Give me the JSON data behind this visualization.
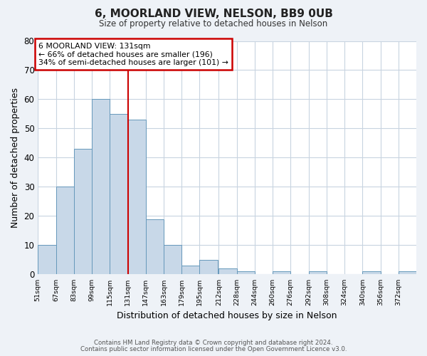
{
  "title": "6, MOORLAND VIEW, NELSON, BB9 0UB",
  "subtitle": "Size of property relative to detached houses in Nelson",
  "xlabel": "Distribution of detached houses by size in Nelson",
  "ylabel": "Number of detached properties",
  "bin_edges": [
    51,
    67,
    83,
    99,
    115,
    131,
    147,
    163,
    179,
    195,
    212,
    228,
    244,
    260,
    276,
    292,
    308,
    324,
    340,
    356,
    372
  ],
  "bar_heights": [
    10,
    30,
    43,
    60,
    55,
    53,
    19,
    10,
    3,
    5,
    2,
    1,
    0,
    1,
    0,
    1,
    0,
    0,
    1,
    0,
    1
  ],
  "bar_color": "#c8d8e8",
  "bar_edge_color": "#6699bb",
  "vline_x": 131,
  "vline_color": "#cc0000",
  "annotation_title": "6 MOORLAND VIEW: 131sqm",
  "annotation_line2": "← 66% of detached houses are smaller (196)",
  "annotation_line3": "34% of semi-detached houses are larger (101) →",
  "annotation_box_color": "#cc0000",
  "ylim": [
    0,
    80
  ],
  "yticks": [
    0,
    10,
    20,
    30,
    40,
    50,
    60,
    70,
    80
  ],
  "tick_labels": [
    "51sqm",
    "67sqm",
    "83sqm",
    "99sqm",
    "115sqm",
    "131sqm",
    "147sqm",
    "163sqm",
    "179sqm",
    "195sqm",
    "212sqm",
    "228sqm",
    "244sqm",
    "260sqm",
    "276sqm",
    "292sqm",
    "308sqm",
    "324sqm",
    "340sqm",
    "356sqm",
    "372sqm"
  ],
  "footer_line1": "Contains HM Land Registry data © Crown copyright and database right 2024.",
  "footer_line2": "Contains public sector information licensed under the Open Government Licence v3.0.",
  "bg_color": "#eef2f7",
  "plot_bg_color": "#ffffff",
  "grid_color": "#c8d4e0",
  "bin_width": 16
}
